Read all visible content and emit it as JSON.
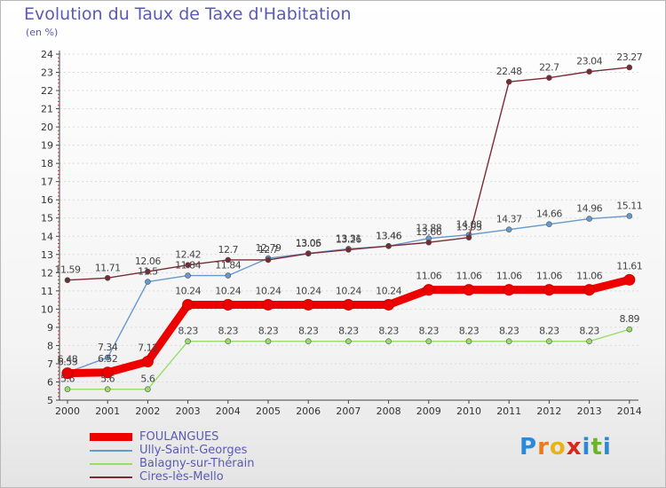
{
  "chart_data": {
    "type": "line",
    "title": "Evolution du Taux de Taxe d'Habitation",
    "subtitle": "(en %)",
    "x": [
      "2000",
      "2001",
      "2002",
      "2003",
      "2004",
      "2005",
      "2006",
      "2007",
      "2008",
      "2009",
      "2010",
      "2011",
      "2012",
      "2013",
      "2014"
    ],
    "ylim": [
      5,
      24
    ],
    "yticks": [
      "5",
      "6",
      "7",
      "8",
      "9",
      "10",
      "11",
      "12",
      "13",
      "14",
      "15",
      "16",
      "17",
      "18",
      "19",
      "20",
      "21",
      "22",
      "23",
      "24"
    ],
    "series": [
      {
        "name": "Balagny-sur-Thérain",
        "color": "#99dd66",
        "values": [
          5.6,
          5.6,
          5.6,
          8.23,
          8.23,
          8.23,
          8.23,
          8.23,
          8.23,
          8.23,
          8.23,
          8.23,
          8.23,
          8.23,
          8.89
        ],
        "labels": [
          "5.6",
          "5.6",
          "5.6",
          "8.23",
          "8.23",
          "8.23",
          "8.23",
          "8.23",
          "8.23",
          "8.23",
          "8.23",
          "8.23",
          "8.23",
          "8.23",
          "8.89"
        ]
      },
      {
        "name": "Ully-Saint-Georges",
        "color": "#6699cc",
        "values": [
          6.53,
          7.34,
          11.5,
          11.84,
          11.84,
          12.79,
          13.06,
          13.31,
          13.46,
          13.88,
          14.08,
          14.37,
          14.66,
          14.96,
          15.11
        ],
        "labels": [
          "6.53",
          "7.34",
          "11.5",
          "11.84",
          "11.84",
          "12.79",
          "13.06",
          "13.31",
          "13.46",
          "13.88",
          "14.08",
          "14.37",
          "14.66",
          "14.96",
          "15.11"
        ]
      },
      {
        "name": "Cires-lès-Mello",
        "color": "#7a2a35",
        "values": [
          11.59,
          11.71,
          12.06,
          12.42,
          12.7,
          12.7,
          13.05,
          13.26,
          13.46,
          13.66,
          13.93,
          22.48,
          22.7,
          23.04,
          23.27
        ],
        "labels": [
          "11.59",
          "11.71",
          "12.06",
          "12.42",
          "12.7",
          "12.7",
          "13.05",
          "13.26",
          "13.46",
          "13.66",
          "13.93",
          "22.48",
          "22.7",
          "23.04",
          "23.27"
        ]
      },
      {
        "name": "FOULANGUES",
        "color": "#ee0000",
        "values": [
          6.48,
          6.52,
          7.12,
          10.24,
          10.24,
          10.24,
          10.24,
          10.24,
          10.24,
          11.06,
          11.06,
          11.06,
          11.06,
          11.06,
          11.61
        ],
        "labels": [
          "6.48",
          "6.52",
          "7.12",
          "10.24",
          "10.24",
          "10.24",
          "10.24",
          "10.24",
          "10.24",
          "11.06",
          "11.06",
          "11.06",
          "11.06",
          "11.06",
          "11.61"
        ]
      }
    ],
    "legend": [
      {
        "name": "FOULANGUES",
        "color": "#ee0000"
      },
      {
        "name": "Ully-Saint-Georges",
        "color": "#6699cc"
      },
      {
        "name": "Balagny-sur-Thérain",
        "color": "#99dd66"
      },
      {
        "name": "Cires-lès-Mello",
        "color": "#7a2a35"
      }
    ],
    "legend_position": "bottom-left"
  },
  "branding": {
    "logo_letters": [
      "P",
      "r",
      "o",
      "x",
      "i",
      "t",
      "i"
    ],
    "logo_colors": [
      "#2a8ad8",
      "#f07a1a",
      "#e8b31a",
      "#d8281a",
      "#2a8ad8",
      "#6ab62a",
      "#2a8ad8"
    ]
  }
}
